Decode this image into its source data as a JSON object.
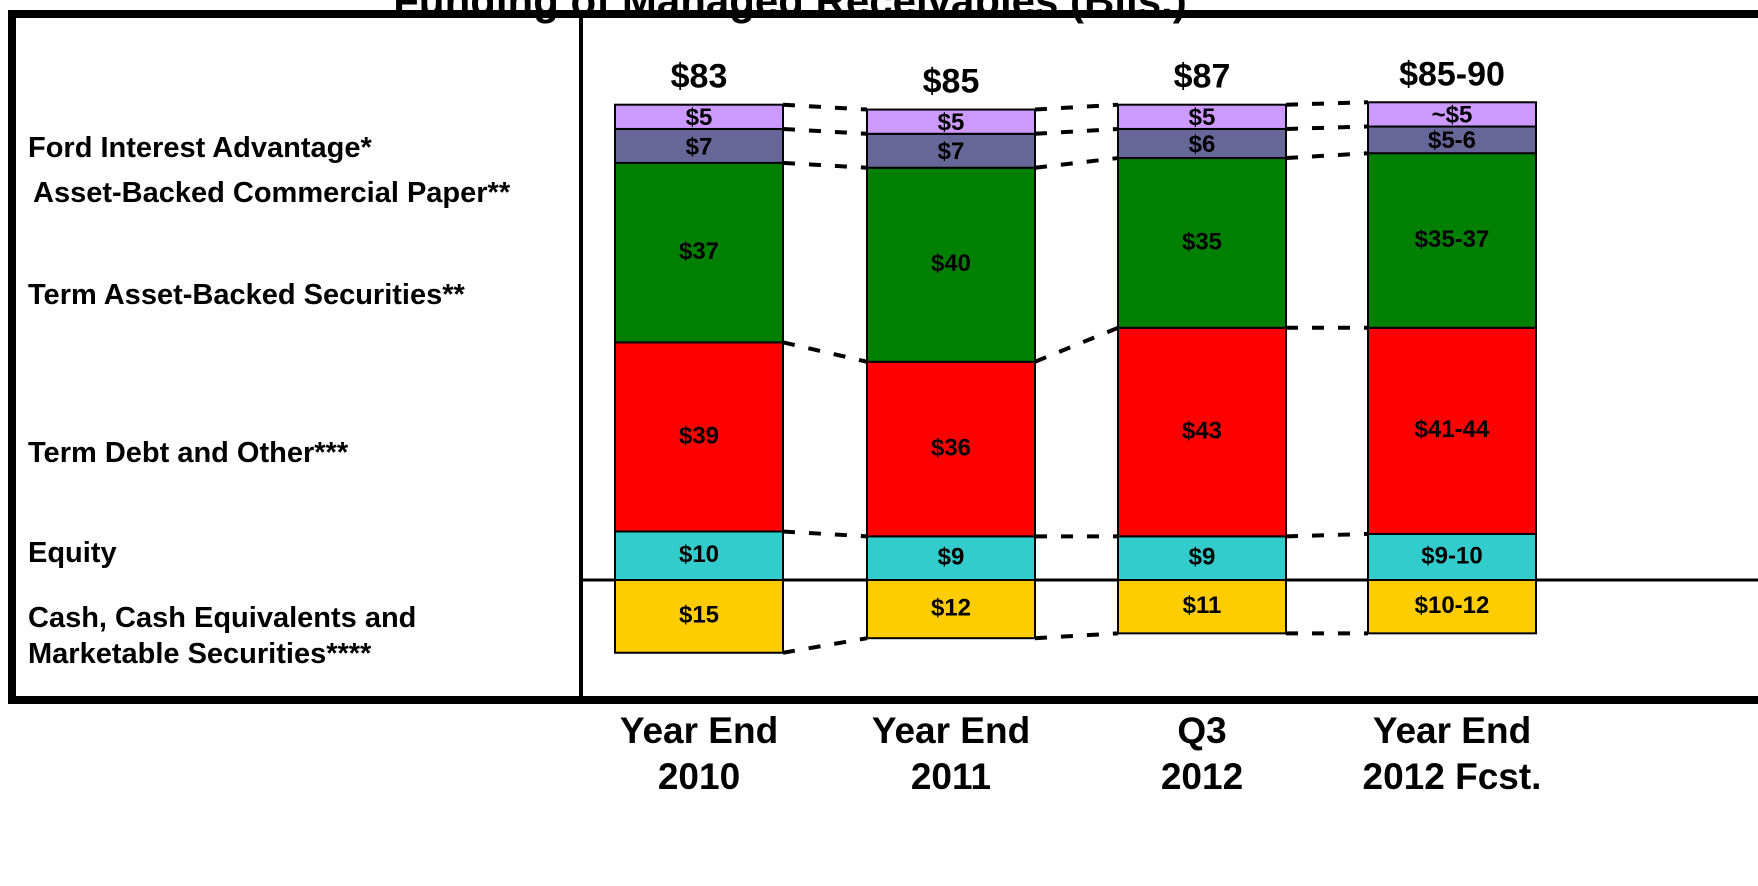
{
  "chart_data": {
    "type": "stacked-bar",
    "title": "Funding of Managed Receivables (Bils.)",
    "categories": [
      "Year End\n2010",
      "Year End\n2011",
      "Q3\n2012",
      "Year End\n2012 Fcst."
    ],
    "totals": [
      "$83",
      "$85",
      "$87",
      "$85-90"
    ],
    "series": [
      {
        "name": "Ford Interest Advantage*",
        "color": "#cc99ff",
        "values": [
          5,
          5,
          5,
          5
        ],
        "value_labels": [
          "$5",
          "$5",
          "$5",
          "~$5"
        ]
      },
      {
        "name": "Asset-Backed Commercial Paper**",
        "color": "#666699",
        "values": [
          7,
          7,
          6,
          5.5
        ],
        "value_labels": [
          "$7",
          "$7",
          "$6",
          "$5-6"
        ]
      },
      {
        "name": "Term Asset-Backed Securities**",
        "color": "#008000",
        "values": [
          37,
          40,
          35,
          36
        ],
        "value_labels": [
          "$37",
          "$40",
          "$35",
          "$35-37"
        ]
      },
      {
        "name": "Term Debt and Other***",
        "color": "#ff0000",
        "values": [
          39,
          36,
          43,
          42.5
        ],
        "value_labels": [
          "$39",
          "$36",
          "$43",
          "$41-44"
        ]
      },
      {
        "name": "Equity",
        "color": "#33cccc",
        "values": [
          10,
          9,
          9,
          9.5
        ],
        "value_labels": [
          "$10",
          "$9",
          "$9",
          "$9-10"
        ]
      },
      {
        "name": "Cash, Cash Equivalents and\nMarketable Securities****",
        "color": "#ffcc00",
        "values": [
          -15,
          -12,
          -11,
          -11
        ],
        "value_labels": [
          "$15",
          "$12",
          "$11",
          "$10-12"
        ]
      }
    ]
  }
}
